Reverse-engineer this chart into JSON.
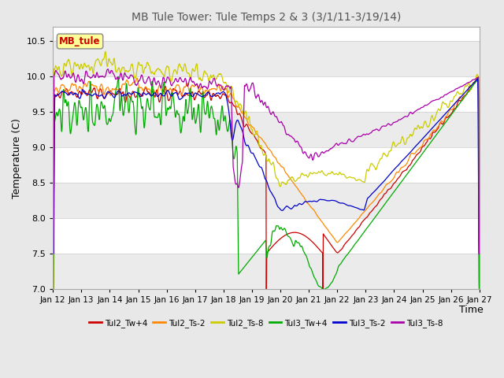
{
  "title": "MB Tule Tower: Tule Temps 2 & 3 (3/1/11-3/19/14)",
  "xlabel": "Time",
  "ylabel": "Temperature (C)",
  "ylim": [
    7.0,
    10.7
  ],
  "xlim": [
    0,
    15
  ],
  "background_color": "#e8e8e8",
  "plot_bg_color": "#ffffff",
  "annotation_text": "MB_tule",
  "annotation_color": "#cc0000",
  "annotation_bg": "#ffff99",
  "xtick_labels": [
    "Jan 12",
    "Jan 13",
    "Jan 14",
    "Jan 15",
    "Jan 16",
    "Jan 17",
    "Jan 18",
    "Jan 19",
    "Jan 20",
    "Jan 21",
    "Jan 22",
    "Jan 23",
    "Jan 24",
    "Jan 25",
    "Jan 26",
    "Jan 27"
  ],
  "series": [
    {
      "name": "Tul2_Tw+4",
      "color": "#cc0000"
    },
    {
      "name": "Tul2_Ts-2",
      "color": "#ff8800"
    },
    {
      "name": "Tul2_Ts-8",
      "color": "#cccc00"
    },
    {
      "name": "Tul3_Tw+4",
      "color": "#00aa00"
    },
    {
      "name": "Tul3_Ts-2",
      "color": "#0000cc"
    },
    {
      "name": "Tul3_Ts-8",
      "color": "#aa00aa"
    }
  ],
  "gray_band_alpha": 0.4,
  "line_width": 0.9
}
